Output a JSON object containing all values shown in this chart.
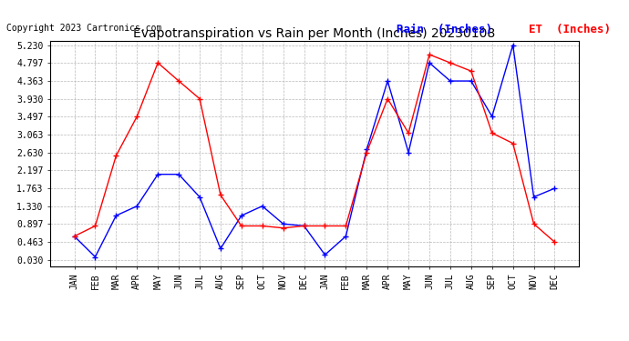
{
  "title": "Evapotranspiration vs Rain per Month (Inches) 20230108",
  "copyright": "Copyright 2023 Cartronics.com",
  "legend_rain": "Rain  (Inches)",
  "legend_et": "ET  (Inches)",
  "months": [
    "JAN",
    "FEB",
    "MAR",
    "APR",
    "MAY",
    "JUN",
    "JUL",
    "AUG",
    "SEP",
    "OCT",
    "NOV",
    "DEC",
    "JAN",
    "FEB",
    "MAR",
    "APR",
    "MAY",
    "JUN",
    "JUL",
    "AUG",
    "SEP",
    "OCT",
    "NOV",
    "DEC"
  ],
  "rain_data": [
    0.6,
    0.1,
    1.1,
    1.33,
    2.1,
    2.1,
    1.55,
    0.3,
    1.1,
    1.33,
    0.9,
    0.85,
    0.15,
    0.6,
    2.7,
    4.36,
    2.63,
    4.8,
    4.36,
    4.36,
    3.5,
    5.23,
    1.55,
    1.76
  ],
  "et_data": [
    0.6,
    0.85,
    2.55,
    3.5,
    4.8,
    4.36,
    3.93,
    1.6,
    0.85,
    0.85,
    0.8,
    0.85,
    0.85,
    0.85,
    2.63,
    3.93,
    3.1,
    5.0,
    4.8,
    4.6,
    3.1,
    2.85,
    0.9,
    0.46
  ],
  "yticks": [
    0.03,
    0.463,
    0.897,
    1.33,
    1.763,
    2.197,
    2.63,
    3.063,
    3.497,
    3.93,
    4.363,
    4.797,
    5.23
  ],
  "ymin": 0.03,
  "ymax": 5.23,
  "rain_color": "blue",
  "et_color": "red",
  "bg_color": "#ffffff",
  "grid_color": "#b0b0b0",
  "title_fontsize": 10,
  "copyright_fontsize": 7,
  "legend_fontsize": 9,
  "tick_fontsize": 7
}
